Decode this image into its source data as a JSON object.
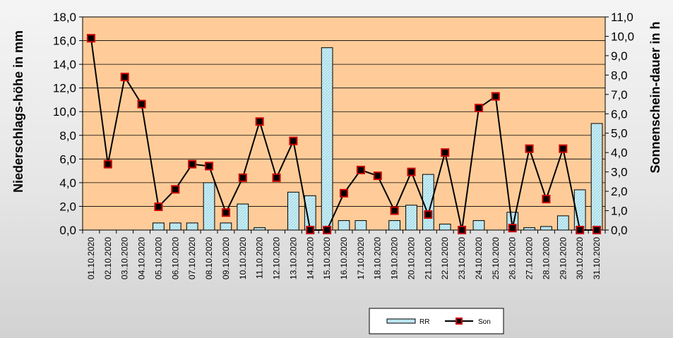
{
  "chart_data": {
    "type": "bar",
    "categories": [
      "01.10.2020",
      "02.10.2020",
      "03.10.2020",
      "04.10.2020",
      "05.10.2020",
      "06.10.2020",
      "07.10.2020",
      "08.10.2020",
      "09.10.2020",
      "10.10.2020",
      "11.10.2020",
      "12.10.2020",
      "13.10.2020",
      "14.10.2020",
      "15.10.2020",
      "16.10.2020",
      "17.10.2020",
      "18.10.2020",
      "19.10.2020",
      "20.10.2020",
      "21.10.2020",
      "22.10.2020",
      "23.10.2020",
      "24.10.2020",
      "25.10.2020",
      "26.10.2020",
      "27.10.2020",
      "28.10.2020",
      "29.10.2020",
      "30.10.2020",
      "31.10.2020"
    ],
    "series": [
      {
        "name": "RR",
        "type": "bar",
        "axis": "left",
        "values": [
          0,
          0,
          0,
          0,
          0.6,
          0.6,
          0.6,
          4.0,
          0.6,
          2.2,
          0.2,
          0,
          3.2,
          2.9,
          15.4,
          0.8,
          0.8,
          0,
          0.8,
          2.1,
          4.7,
          0.5,
          0,
          0.8,
          0,
          1.5,
          0.2,
          0.3,
          1.2,
          3.4,
          9.0
        ]
      },
      {
        "name": "Son",
        "type": "line",
        "axis": "right",
        "values": [
          9.9,
          3.4,
          7.9,
          6.5,
          1.2,
          2.1,
          3.4,
          3.3,
          0.9,
          2.7,
          5.6,
          2.7,
          4.6,
          0.0,
          0.0,
          1.9,
          3.1,
          2.8,
          1.0,
          3.0,
          0.8,
          4.0,
          0.0,
          6.3,
          6.9,
          0.1,
          4.2,
          1.6,
          4.2,
          0.0,
          0.0
        ]
      }
    ],
    "ylabel": "Niederschlags-höhe in mm",
    "y2label": "Sonnenschein-dauer in h",
    "ylim": [
      0,
      18
    ],
    "y2lim": [
      0,
      11
    ],
    "yticks": [
      "0,0",
      "2,0",
      "4,0",
      "6,0",
      "8,0",
      "10,0",
      "12,0",
      "14,0",
      "16,0",
      "18,0"
    ],
    "y2ticks": [
      "0,0",
      "1,0",
      "2,0",
      "3,0",
      "4,0",
      "5,0",
      "6,0",
      "7,0",
      "8,0",
      "9,0",
      "10,0",
      "11,0"
    ],
    "grid": true,
    "legend_position": "bottom"
  },
  "colors": {
    "plot_bg": "#FFCC99",
    "bar_fill": "#BFE9F3",
    "bar_stroke": "#000000",
    "line": "#000000",
    "marker_fill": "#000000",
    "marker_stroke": "#CC0000"
  }
}
